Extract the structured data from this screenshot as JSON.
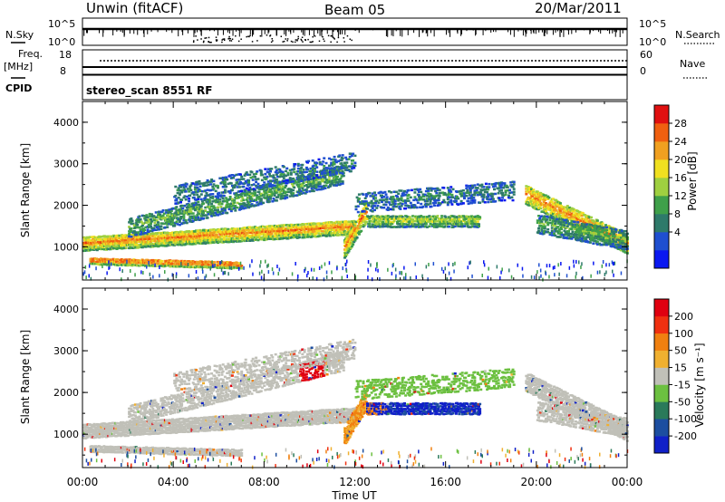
{
  "header": {
    "station": "Unwin (fitACF)",
    "beam": "Beam 05",
    "date": "20/Mar/2011"
  },
  "strips": {
    "nsky_label": "N.Sky",
    "nsky_ticks": [
      "10^5",
      "10^0"
    ],
    "nsearch_label": "N.Search",
    "nsearch_ticks": [
      "10^5",
      "10^0"
    ],
    "freq_label": "Freq.",
    "freq_unit": "[MHz]",
    "freq_ticks": [
      "18",
      "8"
    ],
    "nave_label": "Nave",
    "nave_ticks": [
      "60",
      "0"
    ],
    "cpid_label": "CPID",
    "cpid_value": "stereo_scan 8551 RF"
  },
  "chart_data": [
    {
      "type": "heatmap",
      "ylabel": "Slant Range [km]",
      "yticks": [
        "1000",
        "2000",
        "3000",
        "4000"
      ],
      "ylim": [
        200,
        4500
      ],
      "colorbar_label": "Power [dB]",
      "colorbar_ticks": [
        "28",
        "24",
        "20",
        "16",
        "12",
        "8",
        "4"
      ],
      "colorbar_colors": [
        "#0a18f0",
        "#1f4fd0",
        "#2e7a6a",
        "#3fa04a",
        "#9fd040",
        "#f0e020",
        "#f0a020",
        "#f06010",
        "#e01010"
      ]
    },
    {
      "type": "heatmap",
      "ylabel": "Slant Range [km]",
      "yticks": [
        "1000",
        "2000",
        "3000",
        "4000"
      ],
      "ylim": [
        200,
        4500
      ],
      "colorbar_label": "Velocity [m s⁻¹]",
      "colorbar_ticks": [
        "200",
        "100",
        "50",
        "15",
        "-15",
        "-50",
        "-100",
        "-200"
      ],
      "colorbar_colors": [
        "#1020c8",
        "#1c4ea0",
        "#2a7a5a",
        "#6cc040",
        "#c0c0b8",
        "#f0b030",
        "#f08010",
        "#f03010",
        "#e00010"
      ]
    }
  ],
  "xaxis": {
    "label": "Time UT",
    "ticks": [
      "00:00",
      "04:00",
      "08:00",
      "12:00",
      "16:00",
      "20:00",
      "00:00"
    ]
  }
}
